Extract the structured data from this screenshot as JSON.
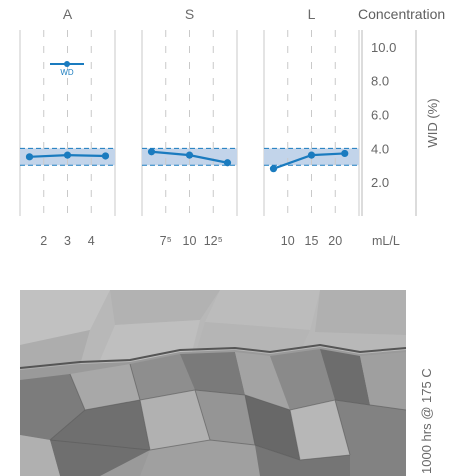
{
  "chart_data": {
    "type": "line",
    "y_axis": {
      "label": "WID (%)",
      "ticks": [
        "10.0",
        "8.0",
        "6.0",
        "4.0",
        "2.0"
      ],
      "tick_values": [
        10,
        8,
        6,
        4,
        2
      ],
      "range": [
        0,
        11
      ]
    },
    "x_unit": "mL/L",
    "concentration_label": "Concentration",
    "spec_band": {
      "low": 3.0,
      "high": 4.0,
      "color": "#c2d4ea",
      "edge_color": "#1a7bbf"
    },
    "series_color": "#1a7bbf",
    "legend": {
      "label": "WD"
    },
    "panels": [
      {
        "title": "A",
        "tick_labels": [
          "2",
          "3",
          "4"
        ],
        "tick_values": [
          2,
          3,
          4
        ],
        "x_range": [
          1,
          5
        ],
        "x": [
          1.4,
          3,
          4.6
        ],
        "y": [
          3.5,
          3.6,
          3.55
        ]
      },
      {
        "title": "S",
        "tick_labels": [
          "7⁵",
          "10",
          "12⁵"
        ],
        "tick_values": [
          7.5,
          10,
          12.5
        ],
        "x_range": [
          5,
          15
        ],
        "x": [
          6,
          10,
          14
        ],
        "y": [
          3.8,
          3.6,
          3.15
        ]
      },
      {
        "title": "L",
        "tick_labels": [
          "10",
          "15",
          "20"
        ],
        "tick_values": [
          10,
          15,
          20
        ],
        "x_range": [
          5,
          25
        ],
        "x": [
          7,
          15,
          22
        ],
        "y": [
          2.8,
          3.6,
          3.7
        ]
      }
    ]
  },
  "micrograph": {
    "label": "1000 hrs @ 175 C"
  }
}
